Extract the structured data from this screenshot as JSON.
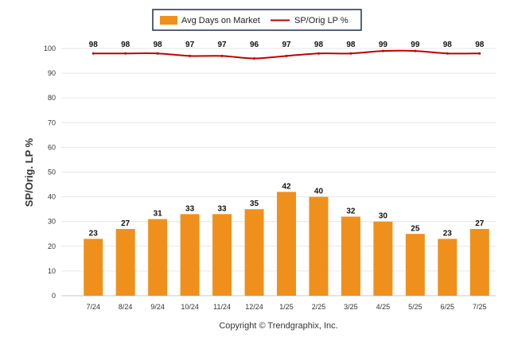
{
  "chart_data": {
    "type": "bar",
    "categories": [
      "7/24",
      "8/24",
      "9/24",
      "10/24",
      "11/24",
      "12/24",
      "1/25",
      "2/25",
      "3/25",
      "4/25",
      "5/25",
      "6/25",
      "7/25"
    ],
    "series": [
      {
        "name": "Avg Days on Market",
        "type": "bar",
        "color": "#f0901c",
        "values": [
          23,
          27,
          31,
          33,
          33,
          35,
          42,
          40,
          32,
          30,
          25,
          23,
          27
        ]
      },
      {
        "name": "SP/Orig LP %",
        "type": "line",
        "color": "#c00000",
        "values": [
          98,
          98,
          98,
          97,
          97,
          96,
          97,
          98,
          98,
          99,
          99,
          98,
          98
        ]
      }
    ],
    "ylabel": "SP/Orig. LP %",
    "ylim": [
      0,
      100
    ],
    "yticks": [
      0,
      10,
      20,
      30,
      40,
      50,
      60,
      70,
      80,
      90,
      100
    ],
    "grid": true,
    "legend_position": "top-center"
  },
  "footer": "Copyright © Trendgraphix, Inc."
}
